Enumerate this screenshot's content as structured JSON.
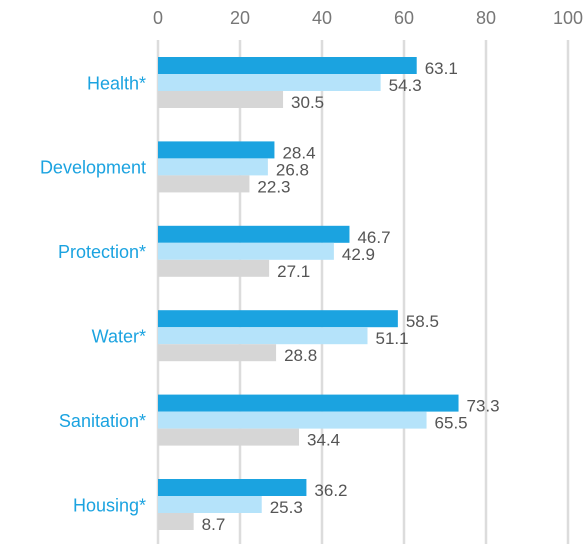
{
  "chart_data": {
    "type": "bar",
    "orientation": "horizontal",
    "categories": [
      "Health*",
      "Development",
      "Protection*",
      "Water*",
      "Sanitation*",
      "Housing*"
    ],
    "series": [
      {
        "color": "#1ba3e0",
        "values": [
          63.1,
          28.4,
          46.7,
          58.5,
          73.3,
          36.2
        ]
      },
      {
        "color": "#b5e3fa",
        "values": [
          54.3,
          26.8,
          42.9,
          51.1,
          65.5,
          25.3
        ]
      },
      {
        "color": "#d6d6d6",
        "values": [
          30.5,
          22.3,
          27.1,
          28.8,
          34.4,
          8.7
        ]
      }
    ],
    "xlim": [
      0,
      100
    ],
    "xticks": [
      0,
      20,
      40,
      60,
      80,
      100
    ],
    "grid": true
  }
}
